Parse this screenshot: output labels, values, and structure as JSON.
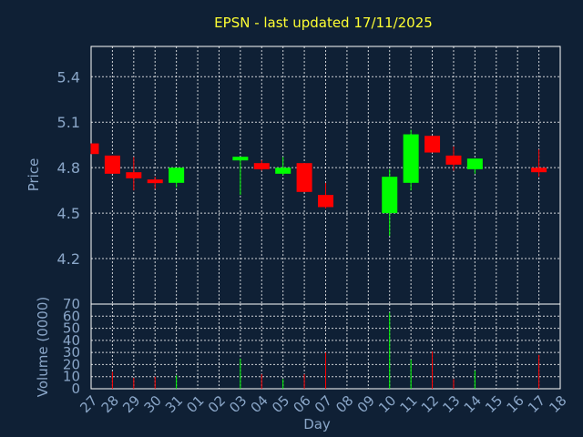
{
  "chart_data": {
    "type": "candlestick",
    "title": "EPSN - last updated 17/11/2025",
    "xlabel": "Day",
    "price_ylabel": "Price",
    "volume_ylabel": "Volume (0000)",
    "price_ylim": [
      3.9,
      5.6
    ],
    "price_yticks": [
      4.2,
      4.5,
      4.8,
      5.1,
      5.4
    ],
    "volume_ylim": [
      0,
      70
    ],
    "volume_yticks": [
      0,
      10,
      20,
      30,
      40,
      50,
      60,
      70
    ],
    "grid": true,
    "colors": {
      "up": "#00ff00",
      "down": "#ff0000",
      "grid": "#ffffff",
      "text": "#8aa6c8",
      "title": "#ffff33",
      "background": "#0f2035"
    },
    "days": [
      "27",
      "28",
      "29",
      "30",
      "31",
      "01",
      "02",
      "03",
      "04",
      "05",
      "06",
      "07",
      "08",
      "09",
      "10",
      "11",
      "12",
      "13",
      "14",
      "15",
      "16",
      "17",
      "18"
    ],
    "candles": [
      {
        "day": "27",
        "open": 4.96,
        "high": 4.96,
        "low": 4.89,
        "close": 4.89,
        "volume": 0
      },
      {
        "day": "28",
        "open": 4.88,
        "high": 4.88,
        "low": 4.76,
        "close": 4.76,
        "volume": 14
      },
      {
        "day": "29",
        "open": 4.77,
        "high": 4.87,
        "low": 4.65,
        "close": 4.73,
        "volume": 9
      },
      {
        "day": "30",
        "open": 4.72,
        "high": 4.74,
        "low": 4.66,
        "close": 4.7,
        "volume": 10
      },
      {
        "day": "31",
        "open": 4.7,
        "high": 4.8,
        "low": 4.67,
        "close": 4.8,
        "volume": 11
      },
      {
        "day": "03",
        "open": 4.85,
        "high": 4.87,
        "low": 4.62,
        "close": 4.87,
        "volume": 25
      },
      {
        "day": "04",
        "open": 4.83,
        "high": 4.85,
        "low": 4.78,
        "close": 4.79,
        "volume": 12
      },
      {
        "day": "05",
        "open": 4.76,
        "high": 4.87,
        "low": 4.75,
        "close": 4.8,
        "volume": 8
      },
      {
        "day": "06",
        "open": 4.83,
        "high": 4.83,
        "low": 4.64,
        "close": 4.64,
        "volume": 12
      },
      {
        "day": "07",
        "open": 4.62,
        "high": 4.7,
        "low": 4.53,
        "close": 4.54,
        "volume": 30
      },
      {
        "day": "10",
        "open": 4.5,
        "high": 4.79,
        "low": 4.35,
        "close": 4.74,
        "volume": 63
      },
      {
        "day": "11",
        "open": 4.7,
        "high": 5.05,
        "low": 4.65,
        "close": 5.02,
        "volume": 24
      },
      {
        "day": "12",
        "open": 5.01,
        "high": 5.01,
        "low": 4.9,
        "close": 4.9,
        "volume": 31
      },
      {
        "day": "13",
        "open": 4.88,
        "high": 4.94,
        "low": 4.78,
        "close": 4.82,
        "volume": 8
      },
      {
        "day": "14",
        "open": 4.79,
        "high": 4.86,
        "low": 4.76,
        "close": 4.86,
        "volume": 15
      },
      {
        "day": "17",
        "open": 4.8,
        "high": 4.92,
        "low": 4.74,
        "close": 4.77,
        "volume": 28
      }
    ]
  }
}
